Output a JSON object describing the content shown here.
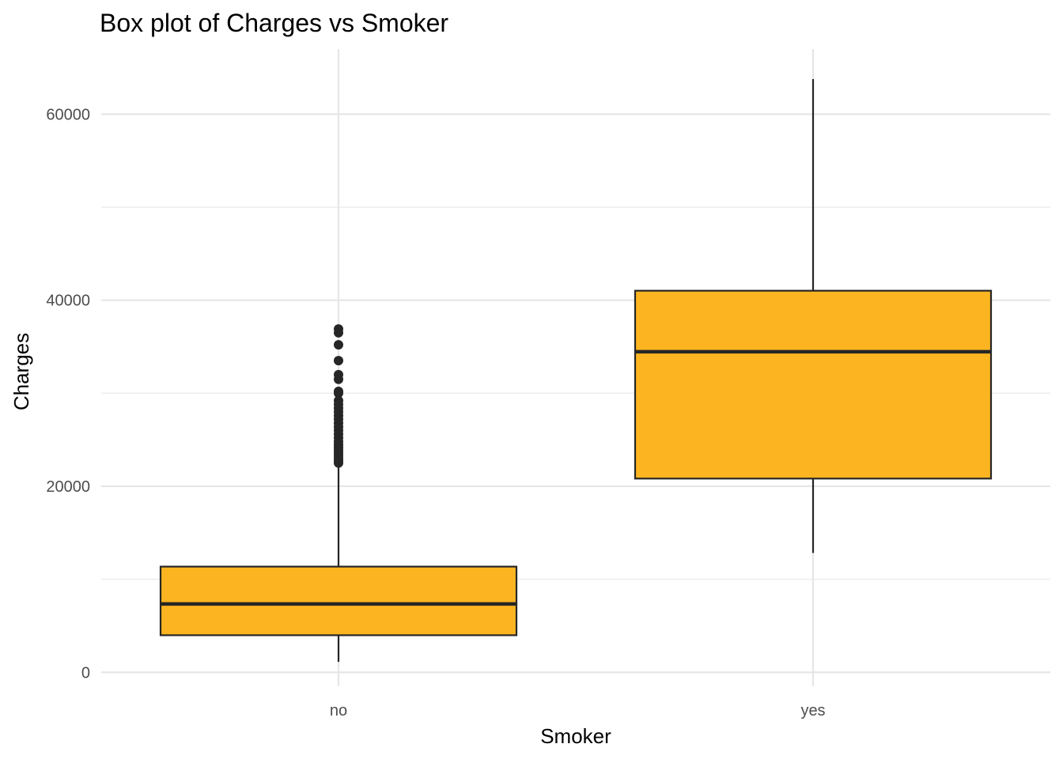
{
  "chart_data": {
    "type": "box",
    "title": "Box plot of Charges vs Smoker",
    "xlabel": "Smoker",
    "ylabel": "Charges",
    "categories": [
      "no",
      "yes"
    ],
    "ylim": [
      -1500,
      67000
    ],
    "yticks": [
      0,
      20000,
      40000,
      60000
    ],
    "yminor": [
      10000,
      30000,
      50000
    ],
    "grid": true,
    "legend": "none",
    "fill_color": "#fcb520",
    "line_color": "#262626",
    "boxes": [
      {
        "category": "no",
        "whisker_low": 1122,
        "q1": 3986,
        "median": 7345,
        "q3": 11363,
        "whisker_high": 22395,
        "outliers": [
          22500,
          22750,
          23000,
          23300,
          23600,
          23900,
          24200,
          24500,
          24800,
          25200,
          25600,
          26000,
          26400,
          26800,
          27200,
          27600,
          28000,
          28400,
          28800,
          29200,
          30000,
          30200,
          31500,
          32000,
          33500,
          35200,
          36500,
          36900
        ]
      },
      {
        "category": "yes",
        "whisker_low": 12829,
        "q1": 20826,
        "median": 34456,
        "q3": 41019,
        "whisker_high": 63770,
        "outliers": []
      }
    ]
  }
}
